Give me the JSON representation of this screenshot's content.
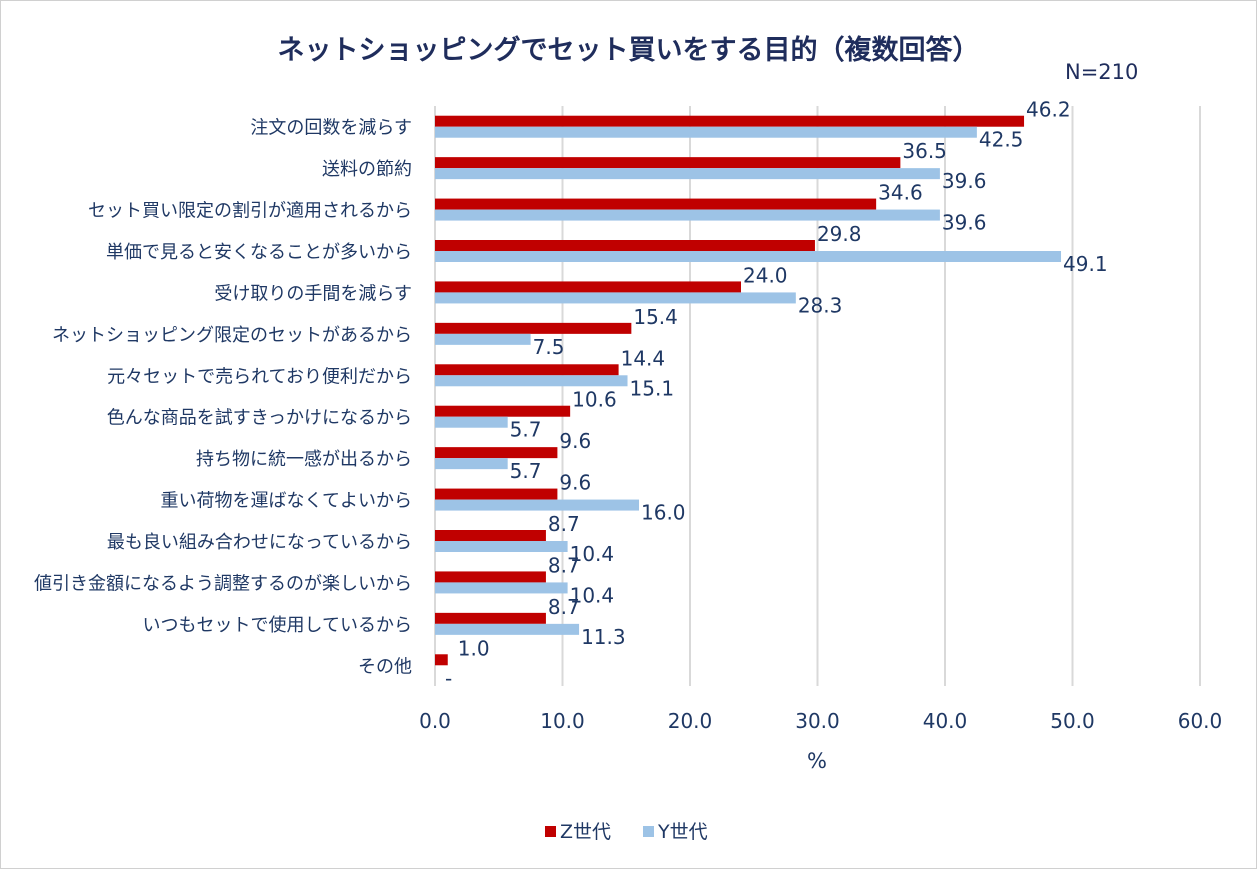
{
  "chart_data": {
    "type": "bar",
    "orientation": "horizontal",
    "title": "ネットショッピングでセット買いをする目的（複数回答）",
    "subtitle": "N=210",
    "xlabel": "%",
    "xlim": [
      0,
      60
    ],
    "xticks": [
      "0.0",
      "10.0",
      "20.0",
      "30.0",
      "40.0",
      "50.0",
      "60.0"
    ],
    "grid": "vertical",
    "legend": "bottom",
    "categories": [
      "注文の回数を減らす",
      "送料の節約",
      "セット買い限定の割引が適用されるから",
      "単価で見ると安くなることが多いから",
      "受け取りの手間を減らす",
      "ネットショッピング限定のセットがあるから",
      "元々セットで売られており便利だから",
      "色んな商品を試すきっかけになるから",
      "持ち物に統一感が出るから",
      "重い荷物を運ばなくてよいから",
      "最も良い組み合わせになっているから",
      "値引き金額になるよう調整するのが楽しいから",
      "いつもセットで使用しているから",
      "その他"
    ],
    "series": [
      {
        "name": "Z世代",
        "color": "#c00000",
        "values": [
          46.2,
          36.5,
          34.6,
          29.8,
          24.0,
          15.4,
          14.4,
          10.6,
          9.6,
          9.6,
          8.7,
          8.7,
          8.7,
          1.0
        ],
        "labels": [
          "46.2",
          "36.5",
          "34.6",
          "29.8",
          "24.0",
          "15.4",
          "14.4",
          "10.6",
          "9.6",
          "9.6",
          "8.7",
          "8.7",
          "8.7",
          "1.0"
        ]
      },
      {
        "name": "Y世代",
        "color": "#9dc3e6",
        "values": [
          42.5,
          39.6,
          39.6,
          49.1,
          28.3,
          7.5,
          15.1,
          5.7,
          5.7,
          16.0,
          10.4,
          10.4,
          11.3,
          0
        ],
        "labels": [
          "42.5",
          "39.6",
          "39.6",
          "49.1",
          "28.3",
          "7.5",
          "15.1",
          "5.7",
          "5.7",
          "16.0",
          "10.4",
          "10.4",
          "11.3",
          "-"
        ]
      }
    ]
  }
}
